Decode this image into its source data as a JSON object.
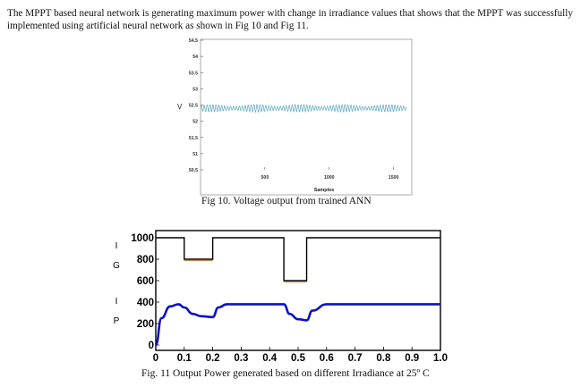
{
  "paragraph": "The MPPT based neural network is generating maximum power with change in irradiance values that shows that the MPPT was successfully implemented using artificial neural network as shown in Fig 10 and Fig 11.",
  "figures": {
    "fig10": {
      "caption": "Fig 10. Voltage output from trained ANN"
    },
    "fig11": {
      "caption": "Fig. 11 Output Power generated based on different Irradiance at 25º C"
    }
  },
  "chart_data": [
    {
      "type": "line",
      "ylabel": "V",
      "xlabel": "Samples",
      "xlim": [
        0,
        1600
      ],
      "ylim": [
        50.5,
        54.5
      ],
      "xticks": [
        "500",
        "1000",
        "1500"
      ],
      "yticks": [
        "50.5",
        "51",
        "51.5",
        "52",
        "52.5",
        "53",
        "53.5",
        "54",
        "54.5"
      ],
      "series": [
        {
          "color": "#5aa9bf",
          "description": "oscillating voltage around 52.4",
          "x": [
            0,
            1600
          ],
          "y": [
            52.4,
            52.4
          ],
          "amplitude": 0.12
        }
      ]
    },
    {
      "type": "line",
      "ylabel_letters": [
        "I",
        "G",
        "I",
        "P"
      ],
      "xlim": [
        0,
        1.0
      ],
      "ylim": [
        0,
        1050
      ],
      "xticks": [
        "0",
        "0.1",
        "0.2",
        "0.3",
        "0.4",
        "0.5",
        "0.6",
        "0.7",
        "0.8",
        "0.9",
        "1.0"
      ],
      "yticks": [
        "0",
        "200",
        "400",
        "600",
        "800",
        "1000"
      ],
      "series": [
        {
          "color": "#000000",
          "x": [
            0.0,
            0.1,
            0.1,
            0.2,
            0.2,
            0.45,
            0.45,
            0.53,
            0.53,
            1.0
          ],
          "y": [
            1000,
            1000,
            800,
            800,
            1000,
            1000,
            600,
            600,
            1000,
            1000
          ]
        },
        {
          "color": "#0a12c8",
          "x": [
            0.0,
            0.02,
            0.05,
            0.08,
            0.1,
            0.13,
            0.16,
            0.2,
            0.22,
            0.25,
            0.3,
            0.45,
            0.47,
            0.5,
            0.53,
            0.55,
            0.6,
            1.0
          ],
          "y": [
            0,
            250,
            360,
            380,
            350,
            290,
            268,
            260,
            350,
            380,
            380,
            380,
            290,
            240,
            230,
            320,
            380,
            380
          ]
        }
      ]
    }
  ]
}
